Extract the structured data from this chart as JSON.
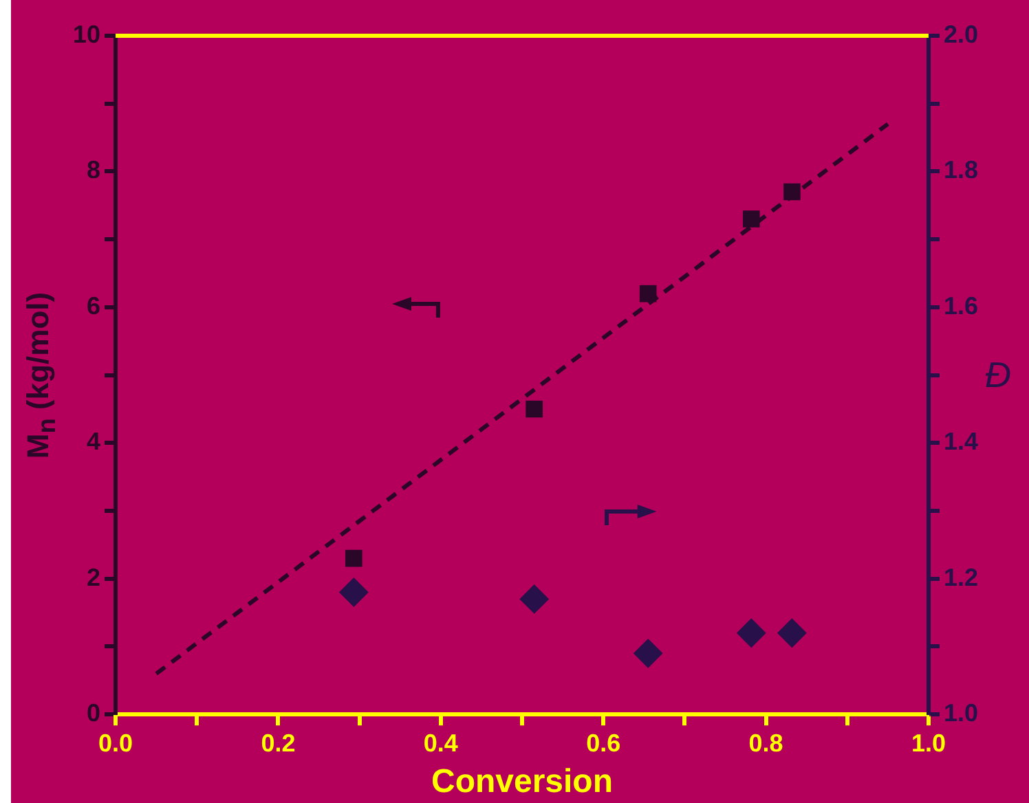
{
  "chart_data": {
    "type": "scatter",
    "xlabel": "Conversion",
    "ylabel": "M$_{n}$ (kg/mol)",
    "y2label": "Đ",
    "xlim": [
      0,
      1
    ],
    "xticks": [
      {
        "value": 0,
        "label": "0.0"
      },
      {
        "value": 0.1,
        "label": null
      },
      0.2,
      {
        "value": 0.3,
        "label": null
      },
      0.4,
      {
        "value": 0.5,
        "label": null
      },
      0.6,
      {
        "value": 0.7,
        "label": null
      },
      0.8,
      {
        "value": 0.9,
        "label": null
      },
      {
        "value": 1,
        "label": "1.0"
      }
    ],
    "ylim": [
      0,
      10
    ],
    "yticks": [
      0,
      {
        "value": 1,
        "label": null
      },
      2,
      {
        "value": 3,
        "label": null
      },
      4,
      {
        "value": 5,
        "label": null
      },
      6,
      {
        "value": 7,
        "label": null
      },
      8,
      {
        "value": 9,
        "label": null
      },
      10
    ],
    "y2lim": [
      1,
      2
    ],
    "y2ticks": [
      {
        "value": 1,
        "label": "1.0"
      },
      {
        "value": 1.1,
        "label": null
      },
      1.2,
      {
        "value": 1.3,
        "label": null
      },
      1.4,
      {
        "value": 1.5,
        "label": null
      },
      1.6,
      {
        "value": 1.7,
        "label": null
      },
      1.8,
      {
        "value": 1.9,
        "label": null
      },
      {
        "value": 2,
        "label": "2.0"
      }
    ],
    "grid": false,
    "legend": false,
    "series": [
      {
        "type": "scatter",
        "marker": "square",
        "color": "#2a0628",
        "x": [
          0.293,
          0.515,
          0.655,
          0.782,
          0.832
        ],
        "values": [
          2.3,
          4.5,
          6.2,
          7.3,
          7.7
        ]
      },
      {
        "type": "scatter",
        "marker": "diamond",
        "color": "#28104a",
        "axis": "y2",
        "x": [
          0.293,
          0.515,
          0.655,
          0.782,
          0.832
        ],
        "values": [
          1.18,
          1.17,
          1.09,
          1.12,
          1.12
        ]
      },
      {
        "type": "line",
        "marker": "none",
        "line_style": "dashed",
        "color": "#2a0628",
        "x": [
          0.05,
          0.95
        ],
        "values": [
          0.6,
          8.7
        ]
      }
    ]
  }
}
